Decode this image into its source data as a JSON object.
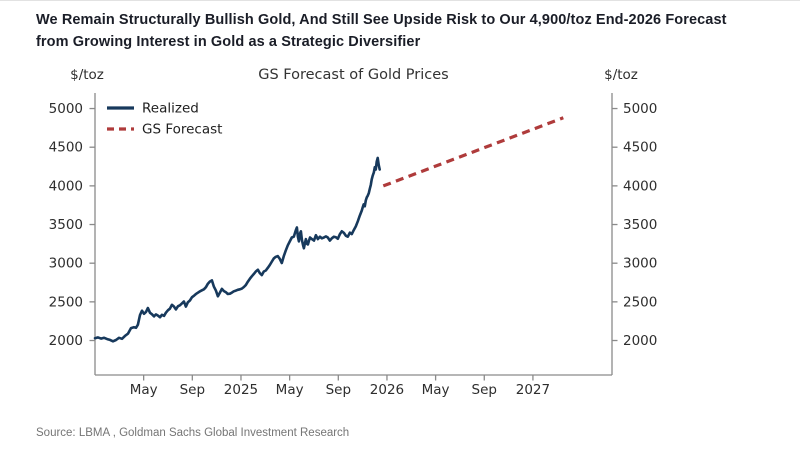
{
  "header": {
    "title_line1": "We Remain Structurally Bullish Gold, And Still See Upside Risk to Our 4,900/toz End-2026 Forecast",
    "title_line2": "from Growing Interest in Gold as a Strategic Diversifier"
  },
  "footer": {
    "source": "Source: LBMA , Goldman Sachs Global Investment Research"
  },
  "colors": {
    "realized": "#17395C",
    "forecast": "#AF3B3B",
    "axis": "#8a8a8a",
    "tick_label": "#2e2e2e",
    "chart_title": "#333333",
    "legend_text": "#1f1f1f"
  },
  "chart_data": {
    "type": "line",
    "title": "GS Forecast of Gold Prices",
    "ylabel_left": "$/toz",
    "ylabel_right": "$/toz",
    "grid": false,
    "legend_position": "top-left",
    "y_ticks": [
      2000,
      2500,
      3000,
      3500,
      4000,
      4500,
      5000
    ],
    "y_range": [
      1554,
      5201
    ],
    "x_range_months": [
      0,
      42.5
    ],
    "x_ticks": [
      {
        "month": 4,
        "label": "May"
      },
      {
        "month": 8,
        "label": "Sep"
      },
      {
        "month": 12,
        "label": "2025"
      },
      {
        "month": 16,
        "label": "May"
      },
      {
        "month": 20,
        "label": "Sep"
      },
      {
        "month": 24,
        "label": "2026"
      },
      {
        "month": 28,
        "label": "May"
      },
      {
        "month": 32,
        "label": "Sep"
      },
      {
        "month": 36,
        "label": "2027"
      }
    ],
    "x_axis_note": "months are offsets from Jan-2024; realized series runs Jan-2024 to late-2025, peaking near 4360 $/toz",
    "series": [
      {
        "name": "Realized",
        "style": "solid",
        "color": "#17395C",
        "points": [
          [
            0,
            2030
          ],
          [
            0.25,
            2040
          ],
          [
            0.5,
            2025
          ],
          [
            0.75,
            2035
          ],
          [
            1,
            2018
          ],
          [
            1.23,
            2008
          ],
          [
            1.48,
            1990
          ],
          [
            1.73,
            2006
          ],
          [
            1.97,
            2035
          ],
          [
            2.22,
            2022
          ],
          [
            2.47,
            2060
          ],
          [
            2.71,
            2090
          ],
          [
            2.96,
            2160
          ],
          [
            3.2,
            2172
          ],
          [
            3.37,
            2165
          ],
          [
            3.53,
            2205
          ],
          [
            3.7,
            2330
          ],
          [
            3.86,
            2385
          ],
          [
            4.03,
            2345
          ],
          [
            4.19,
            2370
          ],
          [
            4.35,
            2420
          ],
          [
            4.52,
            2358
          ],
          [
            4.68,
            2340
          ],
          [
            4.85,
            2312
          ],
          [
            5.01,
            2338
          ],
          [
            5.18,
            2322
          ],
          [
            5.34,
            2300
          ],
          [
            5.5,
            2332
          ],
          [
            5.67,
            2318
          ],
          [
            5.83,
            2360
          ],
          [
            6,
            2392
          ],
          [
            6.16,
            2412
          ],
          [
            6.32,
            2462
          ],
          [
            6.49,
            2440
          ],
          [
            6.65,
            2402
          ],
          [
            6.82,
            2444
          ],
          [
            6.98,
            2455
          ],
          [
            7.14,
            2480
          ],
          [
            7.31,
            2505
          ],
          [
            7.47,
            2438
          ],
          [
            7.64,
            2495
          ],
          [
            7.8,
            2518
          ],
          [
            7.97,
            2560
          ],
          [
            8.13,
            2578
          ],
          [
            8.29,
            2600
          ],
          [
            8.46,
            2618
          ],
          [
            8.62,
            2635
          ],
          [
            8.79,
            2650
          ],
          [
            8.95,
            2662
          ],
          [
            9.12,
            2690
          ],
          [
            9.28,
            2735
          ],
          [
            9.44,
            2762
          ],
          [
            9.61,
            2778
          ],
          [
            9.77,
            2700
          ],
          [
            9.94,
            2645
          ],
          [
            10.1,
            2572
          ],
          [
            10.27,
            2620
          ],
          [
            10.43,
            2668
          ],
          [
            10.59,
            2640
          ],
          [
            10.76,
            2625
          ],
          [
            10.92,
            2602
          ],
          [
            11.09,
            2606
          ],
          [
            11.25,
            2620
          ],
          [
            11.41,
            2636
          ],
          [
            11.58,
            2646
          ],
          [
            11.74,
            2656
          ],
          [
            11.91,
            2662
          ],
          [
            12.07,
            2672
          ],
          [
            12.24,
            2692
          ],
          [
            12.4,
            2716
          ],
          [
            12.57,
            2762
          ],
          [
            12.73,
            2800
          ],
          [
            12.89,
            2830
          ],
          [
            13.06,
            2862
          ],
          [
            13.22,
            2892
          ],
          [
            13.39,
            2916
          ],
          [
            13.55,
            2872
          ],
          [
            13.71,
            2846
          ],
          [
            13.88,
            2892
          ],
          [
            14.04,
            2906
          ],
          [
            14.21,
            2942
          ],
          [
            14.37,
            2976
          ],
          [
            14.54,
            3022
          ],
          [
            14.7,
            3062
          ],
          [
            14.86,
            3082
          ],
          [
            15.03,
            3092
          ],
          [
            15.19,
            3056
          ],
          [
            15.36,
            3002
          ],
          [
            15.52,
            3092
          ],
          [
            15.68,
            3162
          ],
          [
            15.85,
            3232
          ],
          [
            16.01,
            3282
          ],
          [
            16.18,
            3332
          ],
          [
            16.34,
            3342
          ],
          [
            16.5,
            3422
          ],
          [
            16.6,
            3462
          ],
          [
            16.68,
            3342
          ],
          [
            16.76,
            3282
          ],
          [
            16.84,
            3382
          ],
          [
            16.93,
            3412
          ],
          [
            17.01,
            3302
          ],
          [
            17.09,
            3242
          ],
          [
            17.17,
            3192
          ],
          [
            17.26,
            3262
          ],
          [
            17.34,
            3312
          ],
          [
            17.42,
            3252
          ],
          [
            17.5,
            3242
          ],
          [
            17.59,
            3292
          ],
          [
            17.67,
            3332
          ],
          [
            17.83,
            3312
          ],
          [
            18,
            3292
          ],
          [
            18.16,
            3362
          ],
          [
            18.32,
            3312
          ],
          [
            18.49,
            3342
          ],
          [
            18.65,
            3322
          ],
          [
            18.82,
            3332
          ],
          [
            18.98,
            3346
          ],
          [
            19.14,
            3332
          ],
          [
            19.31,
            3292
          ],
          [
            19.47,
            3322
          ],
          [
            19.64,
            3342
          ],
          [
            19.8,
            3336
          ],
          [
            19.96,
            3316
          ],
          [
            20.13,
            3376
          ],
          [
            20.29,
            3412
          ],
          [
            20.46,
            3392
          ],
          [
            20.62,
            3356
          ],
          [
            20.78,
            3342
          ],
          [
            20.95,
            3396
          ],
          [
            21.11,
            3376
          ],
          [
            21.27,
            3426
          ],
          [
            21.44,
            3476
          ],
          [
            21.6,
            3542
          ],
          [
            21.77,
            3616
          ],
          [
            21.93,
            3682
          ],
          [
            22.01,
            3722
          ],
          [
            22.09,
            3762
          ],
          [
            22.18,
            3736
          ],
          [
            22.26,
            3812
          ],
          [
            22.34,
            3852
          ],
          [
            22.42,
            3872
          ],
          [
            22.51,
            3906
          ],
          [
            22.59,
            3962
          ],
          [
            22.67,
            4012
          ],
          [
            22.75,
            4082
          ],
          [
            22.83,
            4132
          ],
          [
            22.92,
            4172
          ],
          [
            23,
            4242
          ],
          [
            23.08,
            4212
          ],
          [
            23.16,
            4312
          ],
          [
            23.24,
            4362
          ],
          [
            23.32,
            4272
          ],
          [
            23.4,
            4212
          ]
        ]
      },
      {
        "name": "GS Forecast",
        "style": "dashed",
        "color": "#AF3B3B",
        "points": [
          [
            23.7,
            4000
          ],
          [
            38.5,
            4880
          ]
        ]
      }
    ]
  }
}
